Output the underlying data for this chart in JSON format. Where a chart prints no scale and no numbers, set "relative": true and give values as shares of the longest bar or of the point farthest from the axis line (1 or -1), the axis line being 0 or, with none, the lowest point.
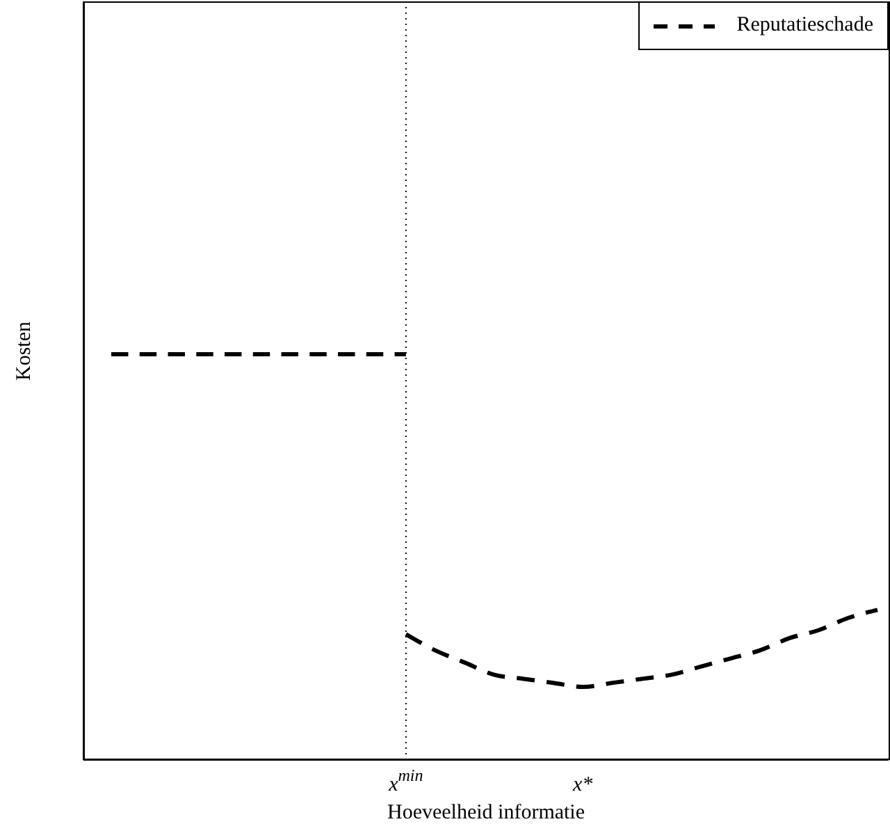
{
  "chart_data": {
    "type": "line",
    "relative": true,
    "xlabel": "Hoeveelheid informatie",
    "ylabel": "Kosten",
    "categories": [
      null,
      null,
      null,
      null,
      null,
      null,
      null,
      null,
      null,
      null,
      "x$^{min}$",
      null,
      null,
      null,
      null,
      null,
      "x*",
      null,
      null,
      null,
      null,
      null,
      null,
      null,
      null,
      null,
      null
    ],
    "series": [
      {
        "name": "Reputatieschade",
        "color": "#000000",
        "values": [
          1,
          1,
          1,
          1,
          1,
          1,
          1,
          1,
          1,
          1,
          1,
          null,
          null,
          null,
          null,
          null,
          null,
          null,
          null,
          null,
          null,
          null,
          null,
          null,
          null,
          null,
          null
        ]
      },
      {
        "color": "#000000",
        "values": [
          null,
          null,
          null,
          null,
          null,
          null,
          null,
          null,
          null,
          null,
          0.31,
          0.27,
          0.24,
          0.21,
          0.2,
          0.19,
          0.18,
          0.19,
          0.2,
          0.21,
          0.23,
          0.25,
          0.27,
          0.3,
          0.32,
          0.35,
          0.37
        ]
      }
    ],
    "ref_lines": [
      {
        "axis": "x",
        "value": "x$^{min}$",
        "color": "#000000",
        "line_style": "dotted"
      }
    ],
    "line_style": "dashed",
    "marker": "none",
    "legend": "top right"
  }
}
